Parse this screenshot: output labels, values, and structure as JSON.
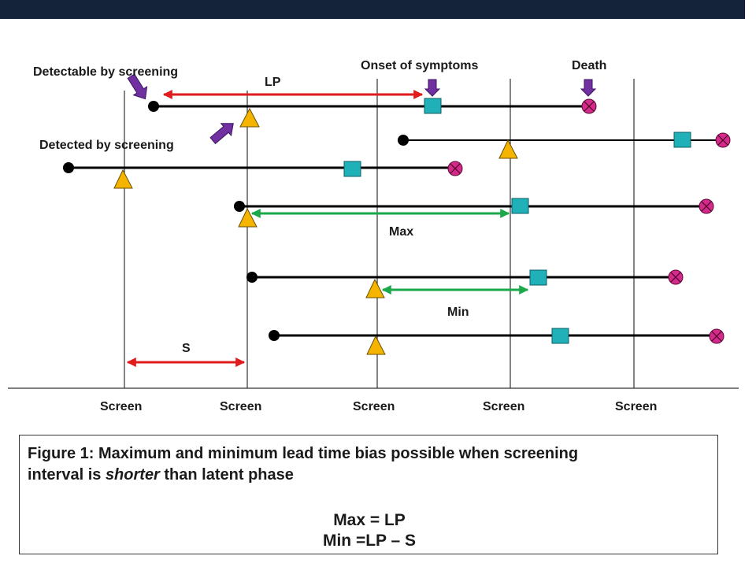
{
  "labels": {
    "detectable": "Detectable by screening",
    "detected": "Detected  by screening",
    "onset": "Onset of symptoms",
    "death": "Death",
    "lp": "LP",
    "max": "Max",
    "min": "Min",
    "s": "S",
    "screen": [
      "Screen",
      "Screen",
      "Screen",
      "Screen",
      "Screen"
    ]
  },
  "caption": {
    "line1": "Figure 1: Maximum and minimum lead time bias possible when screening",
    "line2_prefix": "interval is ",
    "line2_emph": "shorter",
    "line2_suffix": " than latent phase",
    "formula_max": "Max = LP",
    "formula_min": "Min =LP – S"
  },
  "colors": {
    "header_bar": "#14223a",
    "timeline": "#000000",
    "arrow_red": "#e01b1b",
    "arrow_green": "#1aa84a",
    "symptom_square": "#1fb0b8",
    "death_circle": "#d42a8c",
    "screen_triangle": "#f4b400",
    "pointer_purple": "#7030a0"
  },
  "icons": {
    "detectable_marker": "filled-black-dot",
    "onset_marker": "teal-square",
    "death_marker": "magenta-circle-x",
    "screen_marker": "yellow-triangle",
    "pointer": "purple-block-arrow"
  }
}
